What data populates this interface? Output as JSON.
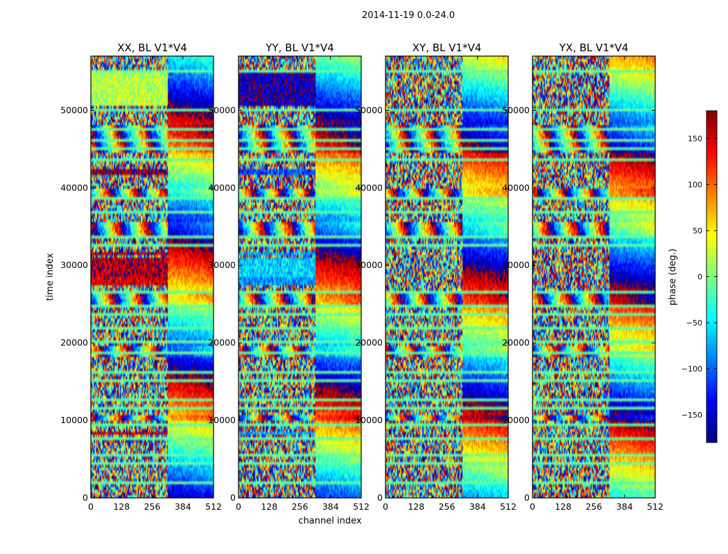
{
  "figure": {
    "suptitle": "2014-11-19 0.0-24.0",
    "xlabel": "channel index",
    "ylabel": "time index",
    "colorbar_label": "phase (deg.)"
  },
  "chart_data": {
    "type": "heatmap",
    "value_range": [
      -180,
      180
    ],
    "colormap": "jet",
    "colormap_stops": [
      "#00007f",
      "#0000ff",
      "#007fff",
      "#00ffff",
      "#7fff7f",
      "#ffff00",
      "#ff7f00",
      "#ff0000",
      "#7f0000"
    ],
    "colorbar_ticks": [
      -150,
      -100,
      -50,
      0,
      50,
      100,
      150
    ],
    "x_ticks": [
      0,
      128,
      256,
      384,
      512
    ],
    "y_ticks": [
      0,
      10000,
      20000,
      30000,
      40000,
      50000
    ],
    "xlim": [
      0,
      512
    ],
    "ylim": [
      0,
      57000
    ],
    "panels": [
      {
        "title": "XX, BL V1*V4",
        "bands": [
          {
            "y": [
              50500,
              54800
            ],
            "x": [
              0,
              320
            ],
            "phase": 20
          },
          {
            "y": [
              41800,
              42300
            ],
            "x": [
              0,
              320
            ],
            "phase": 170
          },
          {
            "y": [
              31400,
              31800
            ],
            "x": [
              0,
              320
            ],
            "phase": 165
          },
          {
            "y": [
              28500,
              31000
            ],
            "x": [
              0,
              320
            ],
            "phase": 160
          },
          {
            "y": [
              27300,
              28600
            ],
            "x": [
              0,
              320
            ],
            "phase": 150
          },
          {
            "y": [
              8100,
              8400
            ],
            "x": [
              0,
              320
            ],
            "phase": 160
          }
        ]
      },
      {
        "title": "YY, BL V1*V4",
        "bands": [
          {
            "y": [
              50500,
              54800
            ],
            "x": [
              0,
              320
            ],
            "phase": -160
          },
          {
            "y": [
              41800,
              42300
            ],
            "x": [
              0,
              320
            ],
            "phase": -110
          },
          {
            "y": [
              31400,
              31800
            ],
            "x": [
              0,
              320
            ],
            "phase": -80
          },
          {
            "y": [
              28500,
              31000
            ],
            "x": [
              0,
              320
            ],
            "phase": -60
          },
          {
            "y": [
              27300,
              28600
            ],
            "x": [
              0,
              320
            ],
            "phase": -85
          },
          {
            "y": [
              8100,
              8400
            ],
            "x": [
              0,
              320
            ],
            "phase": -75
          }
        ]
      },
      {
        "title": "XY, BL V1*V4",
        "bands": []
      },
      {
        "title": "YX, BL V1*V4",
        "bands": []
      }
    ]
  }
}
